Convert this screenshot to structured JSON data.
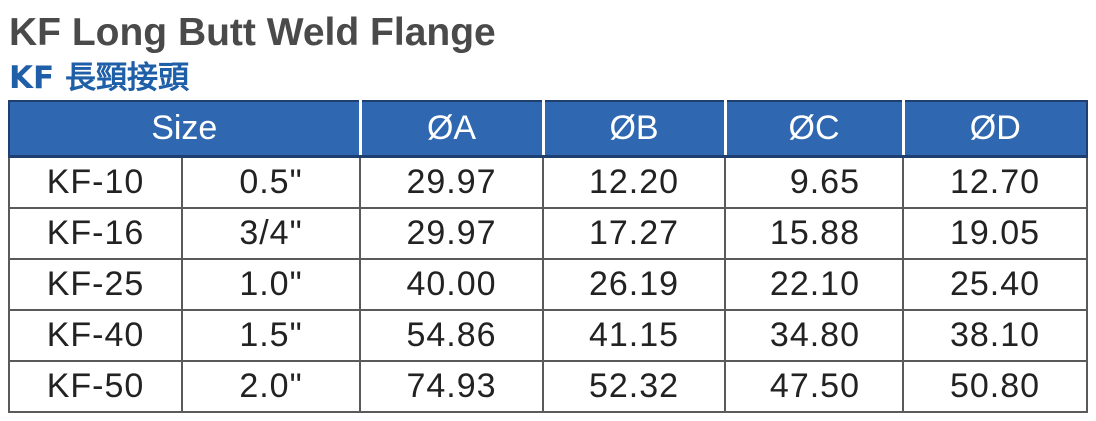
{
  "title": "KF Long Butt Weld Flange",
  "subtitle": "KF 長頸接頭",
  "table": {
    "header": {
      "size": "Size",
      "col_a": "ØA",
      "col_b": "ØB",
      "col_c": "ØC",
      "col_d": "ØD"
    },
    "rows": [
      {
        "model": "KF-10",
        "size": "0.5\"",
        "a": "29.97",
        "b": "12.20",
        "c": "9.65",
        "d": "12.70"
      },
      {
        "model": "KF-16",
        "size": "3/4\"",
        "a": "29.97",
        "b": "17.27",
        "c": "15.88",
        "d": "19.05"
      },
      {
        "model": "KF-25",
        "size": "1.0\"",
        "a": "40.00",
        "b": "26.19",
        "c": "22.10",
        "d": "25.40"
      },
      {
        "model": "KF-40",
        "size": "1.5\"",
        "a": "54.86",
        "b": "41.15",
        "c": "34.80",
        "d": "38.10"
      },
      {
        "model": "KF-50",
        "size": "2.0\"",
        "a": "74.93",
        "b": "52.32",
        "c": "47.50",
        "d": "50.80"
      }
    ]
  },
  "colors": {
    "header_bg": "#2f68b0",
    "title": "#4a4a4a",
    "subtitle": "#1f5fa8"
  }
}
